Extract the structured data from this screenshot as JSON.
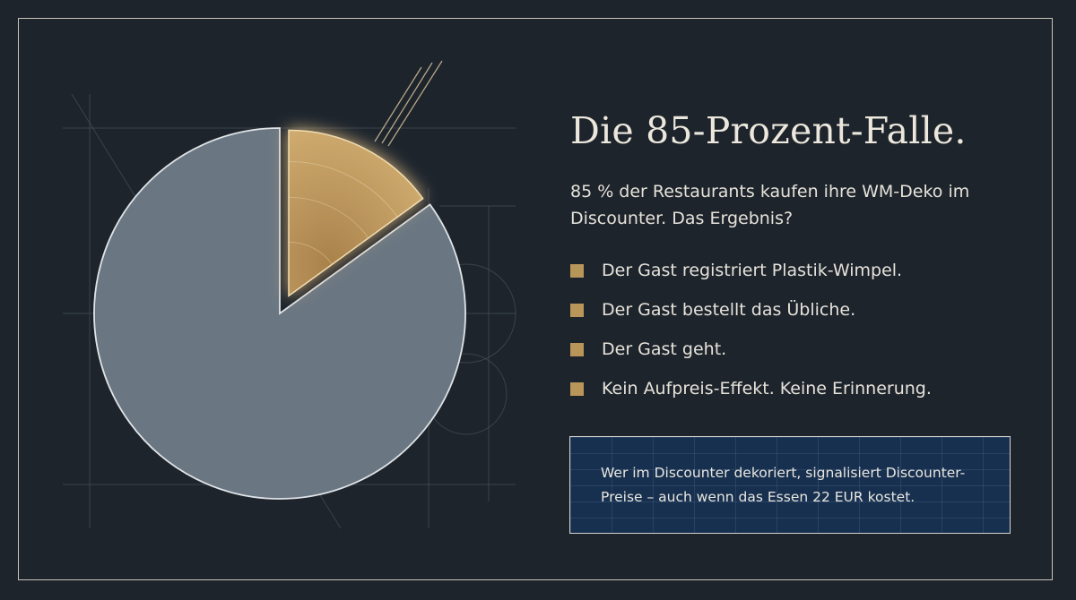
{
  "slide": {
    "title": "Die 85-Prozent-Falle.",
    "subtitle": "85 % der Restaurants kaufen ihre WM-Deko im Discounter. Das Ergebnis?",
    "bullets": [
      "Der Gast registriert Plastik-Wimpel.",
      "Der Gast bestellt das Übliche.",
      "Der Gast geht.",
      "Kein Aufpreis-Effekt. Keine Erinnerung."
    ],
    "callout": "Wer im Discounter dekoriert, signalisiert Discounter-Preise – auch wenn das Essen 22 EUR kostet."
  },
  "colors": {
    "background": "#1d242c",
    "frame": "#c9c4b8",
    "main_slice": "#6a7682",
    "highlight_slice": "#c9a46a",
    "bullet": "#b8965a",
    "callout_bg": "#17304f"
  },
  "icons": {
    "bullet": "square-bullet-icon"
  },
  "chart_data": {
    "type": "pie",
    "title": "",
    "values": [
      85,
      15
    ],
    "colors": [
      "#6a7682",
      "#c9a46a"
    ],
    "exploded": [
      false,
      true
    ],
    "legend": false,
    "grid": false
  }
}
